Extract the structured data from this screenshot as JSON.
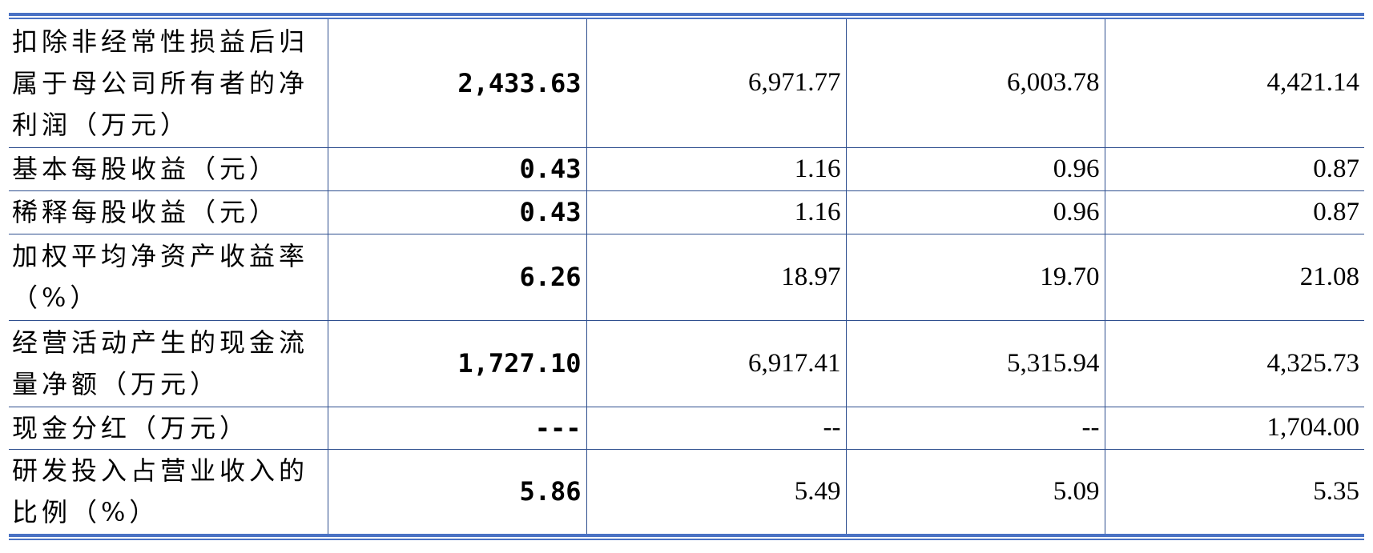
{
  "table": {
    "rows": [
      [
        "扣除非经常性损益后归属于母公司所有者的净利润（万元）",
        "2,433.63",
        "6,971.77",
        "6,003.78",
        "4,421.14"
      ],
      [
        "基本每股收益（元）",
        "0.43",
        "1.16",
        "0.96",
        "0.87"
      ],
      [
        "稀释每股收益（元）",
        "0.43",
        "1.16",
        "0.96",
        "0.87"
      ],
      [
        "加权平均净资产收益率（%）",
        "6.26",
        "18.97",
        "19.70",
        "21.08"
      ],
      [
        "经营活动产生的现金流量净额（万元）",
        "1,727.10",
        "6,917.41",
        "5,315.94",
        "4,325.73"
      ],
      [
        "现金分红（万元）",
        "---",
        "--",
        "--",
        "1,704.00"
      ],
      [
        "研发投入占营业收入的比例（%）",
        "5.86",
        "5.49",
        "5.09",
        "5.35"
      ]
    ]
  }
}
